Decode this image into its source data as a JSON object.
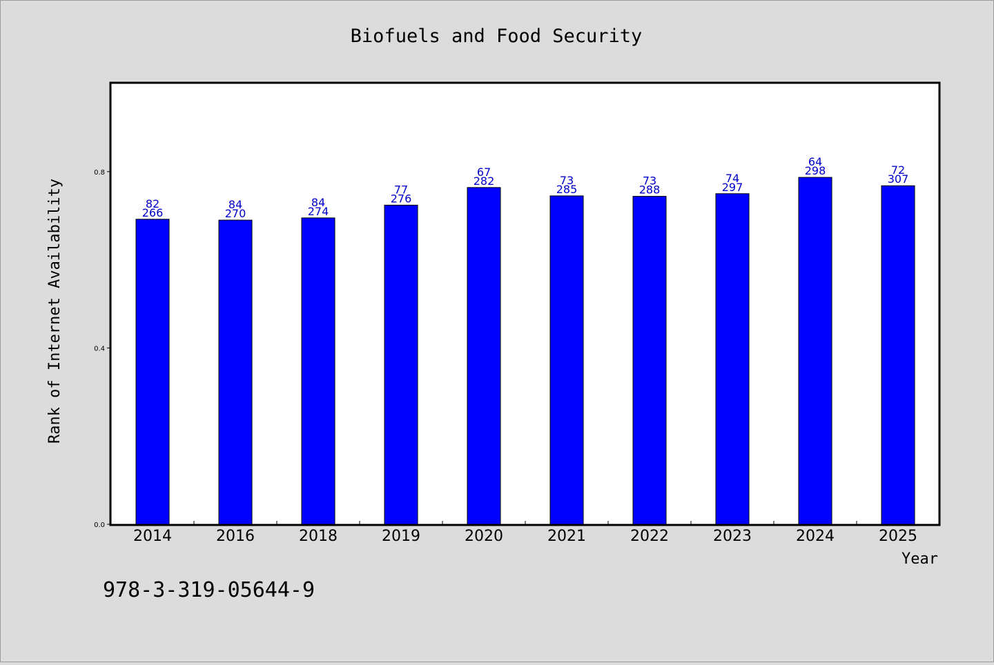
{
  "chart_data": {
    "type": "bar",
    "title": "Biofuels and Food Security",
    "xlabel": "Year",
    "ylabel": "Rank of Internet Availability",
    "footer_text": "978-3-319-05644-9",
    "categories": [
      "2014",
      "2016",
      "2018",
      "2019",
      "2020",
      "2021",
      "2022",
      "2023",
      "2024",
      "2025"
    ],
    "values": [
      0.692,
      0.69,
      0.695,
      0.724,
      0.764,
      0.745,
      0.744,
      0.75,
      0.787,
      0.768
    ],
    "label_top": [
      "82",
      "84",
      "84",
      "77",
      "67",
      "73",
      "73",
      "74",
      "64",
      "72"
    ],
    "label_bottom": [
      "266",
      "270",
      "274",
      "276",
      "282",
      "285",
      "288",
      "297",
      "298",
      "307"
    ],
    "ylim": [
      0,
      1.0
    ],
    "yticks": [
      0.0,
      0.4,
      0.8
    ],
    "ytick_labels": [
      "0.0",
      "0.4",
      "0.8"
    ],
    "bar_color": "#0000ff",
    "label_color": "#0000cc",
    "grid": false,
    "legend": "none"
  }
}
